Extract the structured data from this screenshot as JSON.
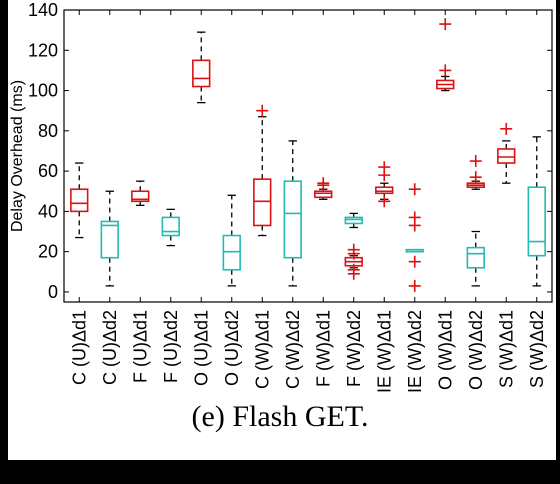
{
  "caption": "(e) Flash GET.",
  "chart_data": {
    "type": "boxplot",
    "title": "",
    "xlabel": "",
    "ylabel": "Delay Overhead (ms)",
    "ylim": [
      -5,
      140
    ],
    "yticks": [
      0,
      20,
      40,
      60,
      80,
      100,
      120,
      140
    ],
    "grid": false,
    "legend": "none",
    "colors": {
      "red": "#dd1111",
      "teal": "#22bbb4",
      "whisker": "#000000"
    },
    "categories": [
      "C (U)Δd1",
      "C (U)Δd2",
      "F (U)Δd1",
      "F (U)Δd2",
      "O (U)Δd1",
      "O (U)Δd2",
      "C (W)Δd1",
      "C (W)Δd2",
      "F (W)Δd1",
      "F (W)Δd2",
      "IE (W)Δd1",
      "IE (W)Δd2",
      "O (W)Δd1",
      "O (W)Δd2",
      "S (W)Δd1",
      "S (W)Δd2"
    ],
    "boxes": [
      {
        "color": "red",
        "whislo": 27,
        "q1": 40,
        "med": 44,
        "q3": 51,
        "whishi": 64,
        "fliers": []
      },
      {
        "color": "teal",
        "whislo": 3,
        "q1": 17,
        "med": 33,
        "q3": 35,
        "whishi": 50,
        "fliers": []
      },
      {
        "color": "red",
        "whislo": 43,
        "q1": 45,
        "med": 46,
        "q3": 50,
        "whishi": 55,
        "fliers": []
      },
      {
        "color": "teal",
        "whislo": 23,
        "q1": 28,
        "med": 30,
        "q3": 37,
        "whishi": 41,
        "fliers": []
      },
      {
        "color": "red",
        "whislo": 94,
        "q1": 102,
        "med": 106,
        "q3": 115,
        "whishi": 129,
        "fliers": []
      },
      {
        "color": "teal",
        "whislo": 3,
        "q1": 11,
        "med": 20,
        "q3": 28,
        "whishi": 48,
        "fliers": []
      },
      {
        "color": "red",
        "whislo": 28,
        "q1": 33,
        "med": 45,
        "q3": 56,
        "whishi": 87,
        "fliers": [
          90
        ]
      },
      {
        "color": "teal",
        "whislo": 3,
        "q1": 17,
        "med": 39,
        "q3": 55,
        "whishi": 75,
        "fliers": []
      },
      {
        "color": "red",
        "whislo": 46,
        "q1": 47,
        "med": 49,
        "q3": 50,
        "whishi": 51,
        "fliers": [
          53,
          54
        ]
      },
      {
        "color": "teal",
        "whislo": 32,
        "q1": 34,
        "med": 36,
        "q3": 37,
        "whishi": 39,
        "fliers": []
      },
      {
        "color": "red",
        "whislo": 12,
        "q1": 13,
        "med": 15,
        "q3": 17,
        "whishi": 18,
        "fliers": [
          9,
          11,
          19,
          21
        ]
      },
      {
        "color": "red",
        "whislo": 46,
        "q1": 49,
        "med": 50,
        "q3": 52,
        "whishi": 54,
        "fliers": [
          45,
          58,
          62
        ]
      },
      {
        "color": "teal",
        "whislo": 20,
        "q1": 20,
        "med": 20,
        "q3": 21,
        "whishi": 21,
        "fliers": []
      },
      {
        "color": "red",
        "whislo": 0,
        "q1": 0,
        "med": 0,
        "q3": 0,
        "whishi": 0,
        "fliers": [
          3,
          15,
          33,
          37,
          51
        ]
      },
      {
        "color": "red",
        "whislo": 100,
        "q1": 101,
        "med": 103,
        "q3": 105,
        "whishi": 107,
        "fliers": [
          110,
          133
        ]
      },
      {
        "color": "red",
        "whislo": 51,
        "q1": 52,
        "med": 53,
        "q3": 54,
        "whishi": 55,
        "fliers": [
          57,
          65
        ]
      },
      {
        "color": "teal",
        "whislo": 3,
        "q1": 12,
        "med": 19,
        "q3": 22,
        "whishi": 30,
        "fliers": []
      },
      {
        "color": "red",
        "whislo": 54,
        "q1": 64,
        "med": 67,
        "q3": 71,
        "whishi": 75,
        "fliers": [
          81
        ]
      },
      {
        "color": "teal",
        "whislo": 3,
        "q1": 18,
        "med": 25,
        "q3": 52,
        "whishi": 77,
        "fliers": []
      }
    ],
    "box_positions": [
      1,
      2,
      3,
      4,
      5,
      6,
      7,
      8,
      9,
      10,
      10,
      11,
      12,
      12,
      13,
      14,
      14,
      15,
      16
    ],
    "box_kind": [
      "box",
      "box",
      "box",
      "box",
      "box",
      "box",
      "box",
      "box",
      "box",
      "box",
      "box",
      "box",
      "box",
      "fliers",
      "box",
      "box",
      "box",
      "box",
      "box"
    ]
  }
}
